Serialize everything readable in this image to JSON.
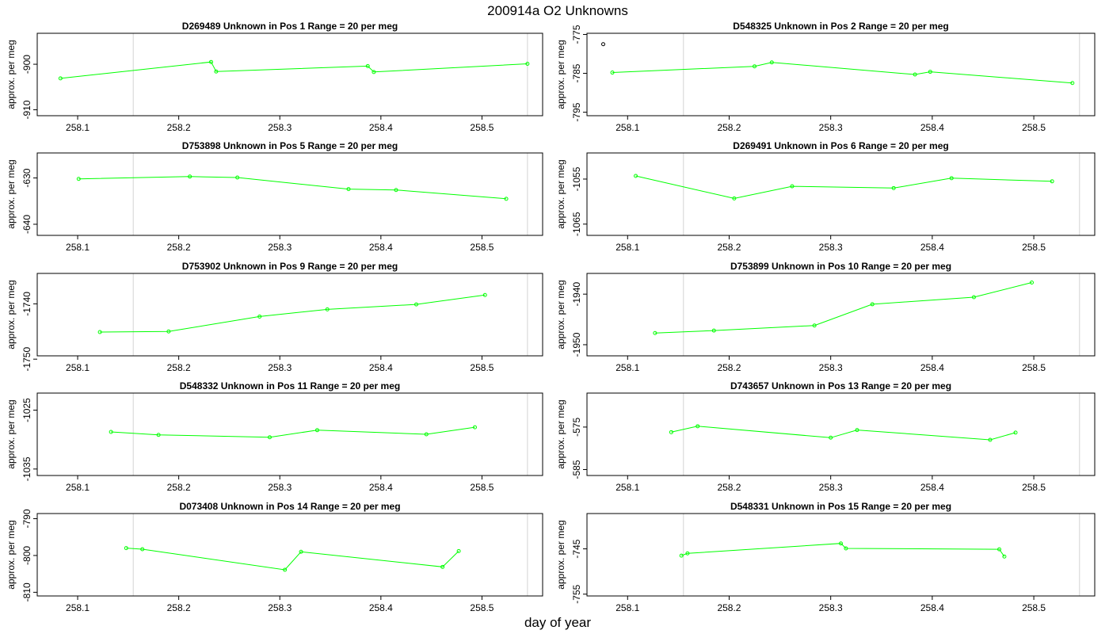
{
  "title": "200914a  O2 Unknowns",
  "xlabel": "day of year",
  "ylabel": "approx. per meg",
  "line_color": "#00ff00",
  "vline_color": "#d3d3d3",
  "chart_data": [
    {
      "type": "line",
      "title": "D269489    Unknown in Pos 1          Range = 20 per meg",
      "x": [
        258.083,
        258.232,
        258.237,
        258.387,
        258.393,
        258.545
      ],
      "y": [
        -903.1,
        -899.5,
        -901.6,
        -900.4,
        -901.7,
        -899.9
      ],
      "xlim": [
        258.06,
        258.56
      ],
      "ylim": [
        -911.3,
        -893.2
      ],
      "yticks": [
        -900,
        -910
      ],
      "xticks": [
        258.1,
        258.2,
        258.3,
        258.4,
        258.5
      ],
      "vlines": [
        258.155,
        258.545
      ],
      "special": []
    },
    {
      "type": "line",
      "title": "D548325    Unknown in Pos 2          Range = 20 per meg",
      "x": [
        258.085,
        258.225,
        258.242,
        258.383,
        258.398,
        258.538
      ],
      "y": [
        -784.8,
        -783.2,
        -782.2,
        -785.3,
        -784.6,
        -787.5
      ],
      "xlim": [
        258.06,
        258.56
      ],
      "ylim": [
        -795.9,
        -774.7
      ],
      "yticks": [
        -775,
        -785,
        -795
      ],
      "xticks": [
        258.1,
        258.2,
        258.3,
        258.4,
        258.5
      ],
      "vlines": [
        258.155,
        258.545
      ],
      "special": [
        {
          "x": 258.076,
          "y": -777.5
        }
      ]
    },
    {
      "type": "line",
      "title": "D753898    Unknown in Pos 5          Range = 20 per meg",
      "x": [
        258.101,
        258.211,
        258.258,
        258.368,
        258.415,
        258.524
      ],
      "y": [
        -630.2,
        -629.7,
        -629.9,
        -632.4,
        -632.6,
        -634.5
      ],
      "xlim": [
        258.06,
        258.56
      ],
      "ylim": [
        -642.4,
        -624.6
      ],
      "yticks": [
        -630,
        -640
      ],
      "xticks": [
        258.1,
        258.2,
        258.3,
        258.4,
        258.5
      ],
      "vlines": [
        258.155,
        258.545
      ],
      "special": []
    },
    {
      "type": "line",
      "title": "D269491    Unknown in Pos 6          Range = 20 per meg",
      "x": [
        258.108,
        258.205,
        258.262,
        258.362,
        258.419,
        258.518
      ],
      "y": [
        -1054.3,
        -1059.3,
        -1056.6,
        -1057.0,
        -1054.8,
        -1055.5
      ],
      "xlim": [
        258.06,
        258.56
      ],
      "ylim": [
        -1067.5,
        -1049.2
      ],
      "yticks": [
        -1055,
        -1065
      ],
      "xticks": [
        258.1,
        258.2,
        258.3,
        258.4,
        258.5
      ],
      "vlines": [
        258.155,
        258.545
      ],
      "special": []
    },
    {
      "type": "line",
      "title": "D753902    Unknown in Pos 9          Range = 20 per meg",
      "x": [
        258.122,
        258.19,
        258.28,
        258.347,
        258.435,
        258.503
      ],
      "y": [
        -1745.1,
        -1745.0,
        -1742.3,
        -1741.0,
        -1740.1,
        -1738.4
      ],
      "xlim": [
        258.06,
        258.56
      ],
      "ylim": [
        -1749.4,
        -1734.5
      ],
      "yticks": [
        -1740,
        -1750
      ],
      "xticks": [
        258.1,
        258.2,
        258.3,
        258.4,
        258.5
      ],
      "vlines": [
        258.155,
        258.545
      ],
      "special": []
    },
    {
      "type": "line",
      "title": "D753899    Unknown in Pos 10          Range = 20 per meg",
      "x": [
        258.127,
        258.185,
        258.284,
        258.341,
        258.441,
        258.498
      ],
      "y": [
        -1947.7,
        -1947.2,
        -1946.2,
        -1942.0,
        -1940.6,
        -1937.7
      ],
      "xlim": [
        258.06,
        258.56
      ],
      "ylim": [
        -1952.2,
        -1935.9
      ],
      "yticks": [
        -1940,
        -1950
      ],
      "xticks": [
        258.1,
        258.2,
        258.3,
        258.4,
        258.5
      ],
      "vlines": [
        258.155,
        258.545
      ],
      "special": []
    },
    {
      "type": "line",
      "title": "D548332    Unknown in Pos 11          Range = 20 per meg",
      "x": [
        258.133,
        258.18,
        258.29,
        258.337,
        258.445,
        258.493
      ],
      "y": [
        -1028.7,
        -1029.2,
        -1029.6,
        -1028.4,
        -1029.1,
        -1027.9
      ],
      "xlim": [
        258.06,
        258.56
      ],
      "ylim": [
        -1036.1,
        -1022.1
      ],
      "yticks": [
        -1025,
        -1035
      ],
      "xticks": [
        258.1,
        258.2,
        258.3,
        258.4,
        258.5
      ],
      "vlines": [
        258.155,
        258.545
      ],
      "special": []
    },
    {
      "type": "line",
      "title": "D743657    Unknown in Pos 13          Range = 20 per meg",
      "x": [
        258.143,
        258.169,
        258.3,
        258.326,
        258.457,
        258.482
      ],
      "y": [
        -576.2,
        -574.8,
        -577.5,
        -575.7,
        -578.0,
        -576.3
      ],
      "xlim": [
        258.06,
        258.56
      ],
      "ylim": [
        -586.4,
        -567.0
      ],
      "yticks": [
        -575,
        -585
      ],
      "xticks": [
        258.1,
        258.2,
        258.3,
        258.4,
        258.5
      ],
      "vlines": [
        258.155,
        258.545
      ],
      "special": []
    },
    {
      "type": "line",
      "title": "D073408    Unknown in Pos 14          Range = 20 per meg",
      "x": [
        258.148,
        258.164,
        258.305,
        258.321,
        258.461,
        258.477
      ],
      "y": [
        -798.0,
        -798.3,
        -803.9,
        -799.0,
        -803.1,
        -798.8
      ],
      "xlim": [
        258.06,
        258.56
      ],
      "ylim": [
        -811.0,
        -788.6
      ],
      "yticks": [
        -790,
        -800,
        -810
      ],
      "xticks": [
        258.1,
        258.2,
        258.3,
        258.4,
        258.5
      ],
      "vlines": [
        258.155,
        258.545
      ],
      "special": []
    },
    {
      "type": "line",
      "title": "D548331    Unknown in Pos 15          Range = 20 per meg",
      "x": [
        258.153,
        258.159,
        258.31,
        258.315,
        258.466,
        258.471
      ],
      "y": [
        -746.5,
        -746.0,
        -743.8,
        -744.9,
        -745.1,
        -746.7
      ],
      "xlim": [
        258.06,
        258.56
      ],
      "ylim": [
        -755.4,
        -737.2
      ],
      "yticks": [
        -745,
        -755
      ],
      "xticks": [
        258.1,
        258.2,
        258.3,
        258.4,
        258.5
      ],
      "vlines": [
        258.155,
        258.545
      ],
      "special": []
    }
  ]
}
